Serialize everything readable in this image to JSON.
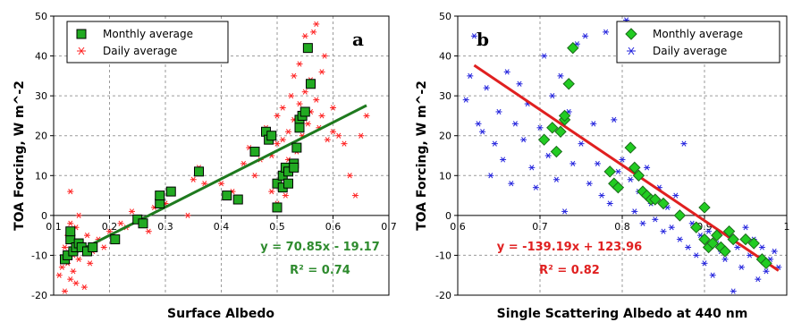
{
  "chart_data": [
    {
      "type": "scatter",
      "panel_label": "a",
      "xlabel": "Surface Albedo",
      "ylabel": "TOA Forcing, W m^-2",
      "xlim": [
        0.1,
        0.7
      ],
      "ylim": [
        -20,
        50
      ],
      "xticks": [
        "0.1",
        "0.2",
        "0.3",
        "0.4",
        "0.5",
        "0.6",
        "0.7"
      ],
      "yticks": [
        "-20",
        "-10",
        "0",
        "10",
        "20",
        "30",
        "40",
        "50"
      ],
      "grid": true,
      "legend_position": "top-left",
      "colors": {
        "monthly": "#22aa22",
        "daily": "#ff2020",
        "fit": "#1e7a1e",
        "equation": "#2e8b2e"
      },
      "equation": "y = 70.85x - 19.17",
      "r_squared": "R² = 0.74",
      "fit": {
        "slope": 70.85,
        "intercept": -19.17,
        "x_range": [
          0.12,
          0.66
        ]
      },
      "series": [
        {
          "name": "Monthly average",
          "marker": "square",
          "points": [
            [
              0.12,
              -11
            ],
            [
              0.125,
              -10
            ],
            [
              0.13,
              -6
            ],
            [
              0.13,
              -4
            ],
            [
              0.135,
              -9
            ],
            [
              0.14,
              -8
            ],
            [
              0.145,
              -7
            ],
            [
              0.15,
              -8
            ],
            [
              0.16,
              -9
            ],
            [
              0.17,
              -8
            ],
            [
              0.21,
              -6
            ],
            [
              0.25,
              -1
            ],
            [
              0.26,
              -2
            ],
            [
              0.29,
              3
            ],
            [
              0.29,
              5
            ],
            [
              0.31,
              6
            ],
            [
              0.36,
              11
            ],
            [
              0.41,
              5
            ],
            [
              0.43,
              4
            ],
            [
              0.46,
              16
            ],
            [
              0.48,
              21
            ],
            [
              0.485,
              19
            ],
            [
              0.49,
              20
            ],
            [
              0.5,
              2
            ],
            [
              0.5,
              8
            ],
            [
              0.51,
              7
            ],
            [
              0.51,
              10
            ],
            [
              0.515,
              12
            ],
            [
              0.52,
              8
            ],
            [
              0.52,
              11
            ],
            [
              0.53,
              13
            ],
            [
              0.53,
              12
            ],
            [
              0.535,
              17
            ],
            [
              0.54,
              24
            ],
            [
              0.54,
              22
            ],
            [
              0.545,
              25
            ],
            [
              0.55,
              26
            ],
            [
              0.555,
              42
            ],
            [
              0.56,
              33
            ]
          ]
        },
        {
          "name": "Daily average",
          "marker": "asterisk",
          "points": [
            [
              0.11,
              -15
            ],
            [
              0.115,
              -13
            ],
            [
              0.12,
              -19
            ],
            [
              0.12,
              -8
            ],
            [
              0.125,
              -5
            ],
            [
              0.125,
              -12
            ],
            [
              0.13,
              -16
            ],
            [
              0.13,
              -2
            ],
            [
              0.13,
              6
            ],
            [
              0.135,
              -10
            ],
            [
              0.135,
              -14
            ],
            [
              0.14,
              -3
            ],
            [
              0.14,
              -17
            ],
            [
              0.145,
              0
            ],
            [
              0.145,
              -11
            ],
            [
              0.15,
              -7
            ],
            [
              0.155,
              -18
            ],
            [
              0.16,
              -5
            ],
            [
              0.165,
              -12
            ],
            [
              0.17,
              -9
            ],
            [
              0.18,
              -6
            ],
            [
              0.19,
              -8
            ],
            [
              0.2,
              -4
            ],
            [
              0.22,
              -2
            ],
            [
              0.23,
              -3
            ],
            [
              0.24,
              1
            ],
            [
              0.27,
              -4
            ],
            [
              0.28,
              2
            ],
            [
              0.3,
              3
            ],
            [
              0.34,
              0
            ],
            [
              0.35,
              9
            ],
            [
              0.36,
              12
            ],
            [
              0.37,
              8
            ],
            [
              0.4,
              8
            ],
            [
              0.42,
              6
            ],
            [
              0.44,
              13
            ],
            [
              0.45,
              17
            ],
            [
              0.46,
              10
            ],
            [
              0.47,
              14
            ],
            [
              0.48,
              22
            ],
            [
              0.49,
              6
            ],
            [
              0.49,
              15
            ],
            [
              0.5,
              25
            ],
            [
              0.5,
              18
            ],
            [
              0.5,
              3
            ],
            [
              0.505,
              9
            ],
            [
              0.51,
              19
            ],
            [
              0.51,
              27
            ],
            [
              0.515,
              5
            ],
            [
              0.52,
              21
            ],
            [
              0.52,
              14
            ],
            [
              0.525,
              30
            ],
            [
              0.53,
              24
            ],
            [
              0.53,
              35
            ],
            [
              0.535,
              16
            ],
            [
              0.54,
              28
            ],
            [
              0.54,
              38
            ],
            [
              0.545,
              20
            ],
            [
              0.55,
              31
            ],
            [
              0.55,
              45
            ],
            [
              0.555,
              23
            ],
            [
              0.56,
              26
            ],
            [
              0.56,
              34
            ],
            [
              0.565,
              46
            ],
            [
              0.57,
              29
            ],
            [
              0.57,
              48
            ],
            [
              0.575,
              22
            ],
            [
              0.58,
              25
            ],
            [
              0.58,
              36
            ],
            [
              0.585,
              40
            ],
            [
              0.59,
              19
            ],
            [
              0.6,
              27
            ],
            [
              0.6,
              21
            ],
            [
              0.61,
              20
            ],
            [
              0.62,
              18
            ],
            [
              0.63,
              10
            ],
            [
              0.64,
              5
            ],
            [
              0.65,
              20
            ],
            [
              0.66,
              25
            ]
          ]
        }
      ]
    },
    {
      "type": "scatter",
      "panel_label": "b",
      "xlabel": "Single Scattering Albedo at 440 nm",
      "ylabel": "TOA Forcing, W m^-2",
      "xlim": [
        0.6,
        1.0
      ],
      "ylim": [
        -20,
        50
      ],
      "xticks": [
        "0.6",
        "0.7",
        "0.8",
        "0.9",
        "1"
      ],
      "yticks": [
        "-20",
        "-10",
        "0",
        "10",
        "20",
        "30",
        "40",
        "50"
      ],
      "grid": true,
      "legend_position": "top-right",
      "colors": {
        "monthly": "#22cc22",
        "daily": "#2222dd",
        "fit": "#e02020",
        "equation": "#e02020"
      },
      "equation": "y = -139.19x + 123.96",
      "r_squared": "R² = 0.82",
      "fit": {
        "slope": -139.19,
        "intercept": 123.96,
        "x_range": [
          0.62,
          0.99
        ]
      },
      "series": [
        {
          "name": "Monthly average",
          "marker": "diamond",
          "points": [
            [
              0.705,
              19
            ],
            [
              0.715,
              22
            ],
            [
              0.72,
              16
            ],
            [
              0.725,
              21
            ],
            [
              0.73,
              24
            ],
            [
              0.73,
              25
            ],
            [
              0.735,
              33
            ],
            [
              0.74,
              42
            ],
            [
              0.785,
              11
            ],
            [
              0.79,
              8
            ],
            [
              0.795,
              7
            ],
            [
              0.81,
              17
            ],
            [
              0.815,
              12
            ],
            [
              0.82,
              10
            ],
            [
              0.825,
              6
            ],
            [
              0.83,
              5
            ],
            [
              0.835,
              4
            ],
            [
              0.84,
              4
            ],
            [
              0.85,
              3
            ],
            [
              0.87,
              0
            ],
            [
              0.89,
              -3
            ],
            [
              0.9,
              -6
            ],
            [
              0.905,
              -8
            ],
            [
              0.91,
              -7
            ],
            [
              0.915,
              -5
            ],
            [
              0.92,
              -8
            ],
            [
              0.925,
              -9
            ],
            [
              0.93,
              -4
            ],
            [
              0.935,
              -6
            ],
            [
              0.95,
              -6
            ],
            [
              0.96,
              -7
            ],
            [
              0.97,
              -11
            ],
            [
              0.975,
              -12
            ],
            [
              0.9,
              2
            ]
          ]
        },
        {
          "name": "Daily average",
          "marker": "asterisk",
          "points": [
            [
              0.61,
              29
            ],
            [
              0.615,
              35
            ],
            [
              0.62,
              45
            ],
            [
              0.625,
              23
            ],
            [
              0.63,
              21
            ],
            [
              0.635,
              32
            ],
            [
              0.64,
              10
            ],
            [
              0.645,
              18
            ],
            [
              0.65,
              26
            ],
            [
              0.655,
              14
            ],
            [
              0.66,
              36
            ],
            [
              0.665,
              8
            ],
            [
              0.67,
              23
            ],
            [
              0.675,
              33
            ],
            [
              0.68,
              19
            ],
            [
              0.685,
              28
            ],
            [
              0.69,
              12
            ],
            [
              0.695,
              7
            ],
            [
              0.7,
              22
            ],
            [
              0.705,
              40
            ],
            [
              0.71,
              15
            ],
            [
              0.715,
              30
            ],
            [
              0.72,
              9
            ],
            [
              0.725,
              35
            ],
            [
              0.73,
              1
            ],
            [
              0.735,
              26
            ],
            [
              0.74,
              13
            ],
            [
              0.745,
              43
            ],
            [
              0.75,
              18
            ],
            [
              0.755,
              45
            ],
            [
              0.76,
              8
            ],
            [
              0.765,
              23
            ],
            [
              0.77,
              13
            ],
            [
              0.775,
              5
            ],
            [
              0.78,
              46
            ],
            [
              0.785,
              3
            ],
            [
              0.79,
              24
            ],
            [
              0.795,
              11
            ],
            [
              0.8,
              14
            ],
            [
              0.805,
              49
            ],
            [
              0.81,
              9
            ],
            [
              0.815,
              1
            ],
            [
              0.82,
              6
            ],
            [
              0.825,
              -2
            ],
            [
              0.83,
              12
            ],
            [
              0.835,
              3
            ],
            [
              0.84,
              -1
            ],
            [
              0.845,
              7
            ],
            [
              0.85,
              -4
            ],
            [
              0.855,
              2
            ],
            [
              0.86,
              -3
            ],
            [
              0.865,
              5
            ],
            [
              0.87,
              -6
            ],
            [
              0.875,
              18
            ],
            [
              0.88,
              -8
            ],
            [
              0.885,
              -2
            ],
            [
              0.89,
              -10
            ],
            [
              0.895,
              -5
            ],
            [
              0.9,
              -12
            ],
            [
              0.905,
              -4
            ],
            [
              0.91,
              -15
            ],
            [
              0.915,
              -7
            ],
            [
              0.92,
              -9
            ],
            [
              0.925,
              -11
            ],
            [
              0.93,
              -5
            ],
            [
              0.935,
              -19
            ],
            [
              0.94,
              -8
            ],
            [
              0.945,
              -13
            ],
            [
              0.95,
              -3
            ],
            [
              0.955,
              -10
            ],
            [
              0.96,
              -6
            ],
            [
              0.965,
              -16
            ],
            [
              0.97,
              -8
            ],
            [
              0.975,
              -14
            ],
            [
              0.98,
              -11
            ],
            [
              0.985,
              -9
            ],
            [
              0.99,
              -13
            ]
          ]
        }
      ]
    }
  ]
}
